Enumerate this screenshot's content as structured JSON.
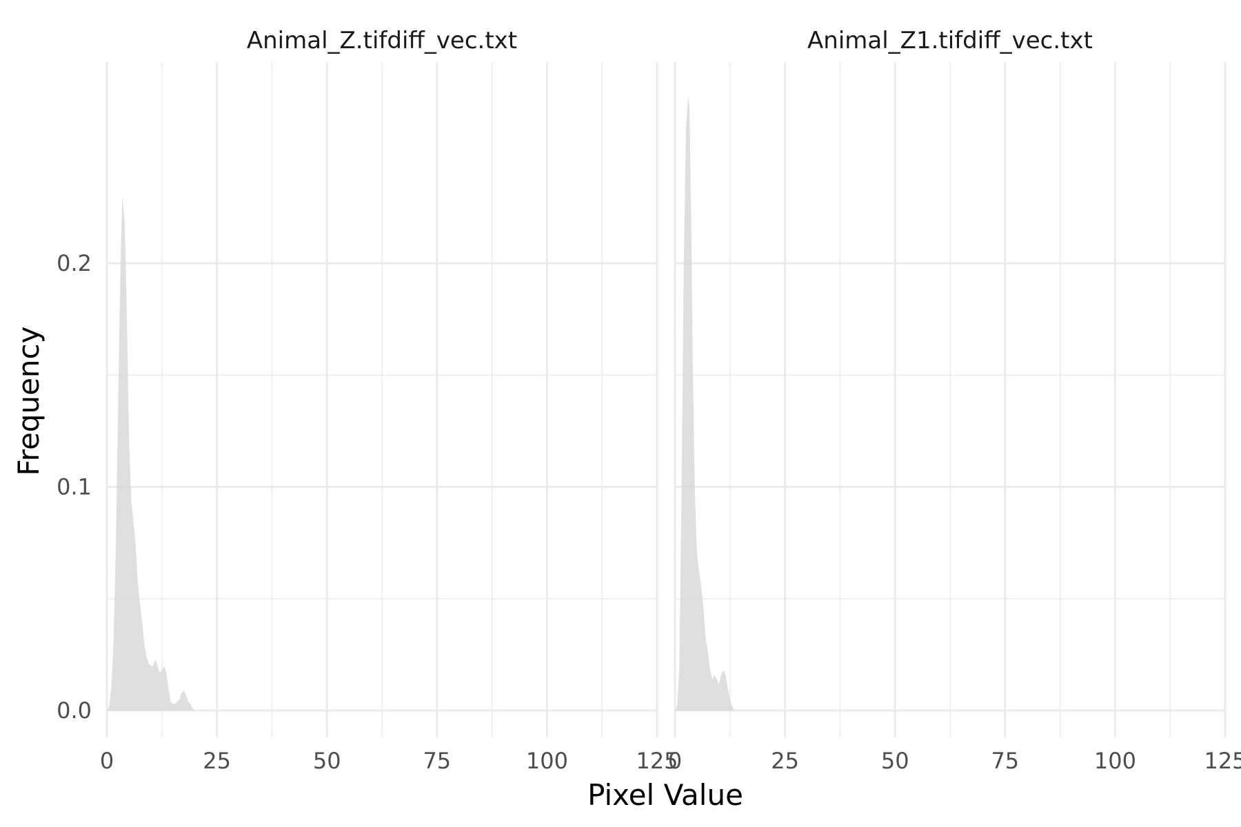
{
  "chart_data": {
    "type": "area",
    "title": "",
    "xlabel": "Pixel Value",
    "ylabel": "Frequency",
    "xlim": [
      0,
      125
    ],
    "ylim": [
      -0.012,
      0.29
    ],
    "x_ticks": [
      0,
      25,
      50,
      75,
      100,
      125
    ],
    "x_tick_labels": [
      "0",
      "25",
      "50",
      "75",
      "100",
      "125"
    ],
    "y_ticks": [
      0,
      0.1,
      0.2
    ],
    "y_tick_labels": [
      "0.0",
      "0.1",
      "0.2"
    ],
    "grid": true,
    "fill_color": "#d9d9d9",
    "fill_opacity": 0.85,
    "panels": [
      {
        "label": "Animal_Z.tifdiff_vec.txt",
        "x": [
          0,
          0.5,
          1,
          1.5,
          2,
          2.5,
          3,
          3.5,
          4,
          4.3,
          4.7,
          5,
          5.5,
          6,
          6.5,
          7,
          7.5,
          8,
          8.5,
          9,
          9.5,
          10,
          10.5,
          11,
          11.5,
          12,
          12.5,
          13,
          13.5,
          14,
          14.5,
          15,
          15.5,
          16,
          16.5,
          17,
          17.5,
          18,
          18.5,
          19,
          19.5,
          20,
          21
        ],
        "y": [
          0,
          0.002,
          0.01,
          0.03,
          0.07,
          0.13,
          0.19,
          0.23,
          0.22,
          0.2,
          0.16,
          0.125,
          0.095,
          0.085,
          0.075,
          0.058,
          0.048,
          0.04,
          0.03,
          0.024,
          0.021,
          0.02,
          0.02,
          0.023,
          0.02,
          0.017,
          0.018,
          0.02,
          0.017,
          0.01,
          0.004,
          0.003,
          0.003,
          0.004,
          0.005,
          0.008,
          0.009,
          0.007,
          0.004,
          0.003,
          0.001,
          0.0,
          0
        ]
      },
      {
        "label": "Animal_Z1.tifdiff_vec.txt",
        "x": [
          0,
          0.5,
          1,
          1.5,
          2,
          2.5,
          3,
          3.3,
          3.7,
          4,
          4.5,
          5,
          5.5,
          6,
          6.5,
          7,
          7.5,
          8,
          8.5,
          9,
          9.5,
          10,
          10.5,
          11,
          11.5,
          12,
          12.5,
          13,
          13.5,
          14
        ],
        "y": [
          0,
          0.002,
          0.02,
          0.1,
          0.2,
          0.26,
          0.275,
          0.27,
          0.22,
          0.16,
          0.1,
          0.07,
          0.062,
          0.055,
          0.045,
          0.032,
          0.026,
          0.018,
          0.014,
          0.016,
          0.014,
          0.012,
          0.016,
          0.018,
          0.016,
          0.01,
          0.005,
          0.002,
          0.0,
          0
        ]
      }
    ]
  }
}
